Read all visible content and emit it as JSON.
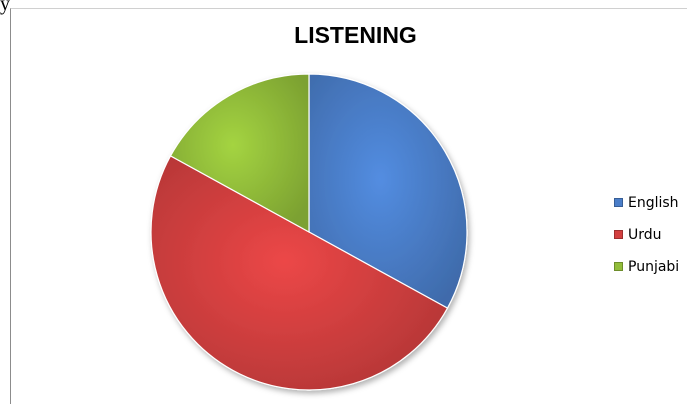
{
  "page": {
    "corner_glyph": "y"
  },
  "chart_data": {
    "type": "pie",
    "title": "LISTENING",
    "categories": [
      "English",
      "Urdu",
      "Punjabi"
    ],
    "values": [
      33,
      50,
      17
    ],
    "colors": [
      "#4a7ec9",
      "#d33f3f",
      "#92bd3a"
    ],
    "legend_position": "right"
  }
}
